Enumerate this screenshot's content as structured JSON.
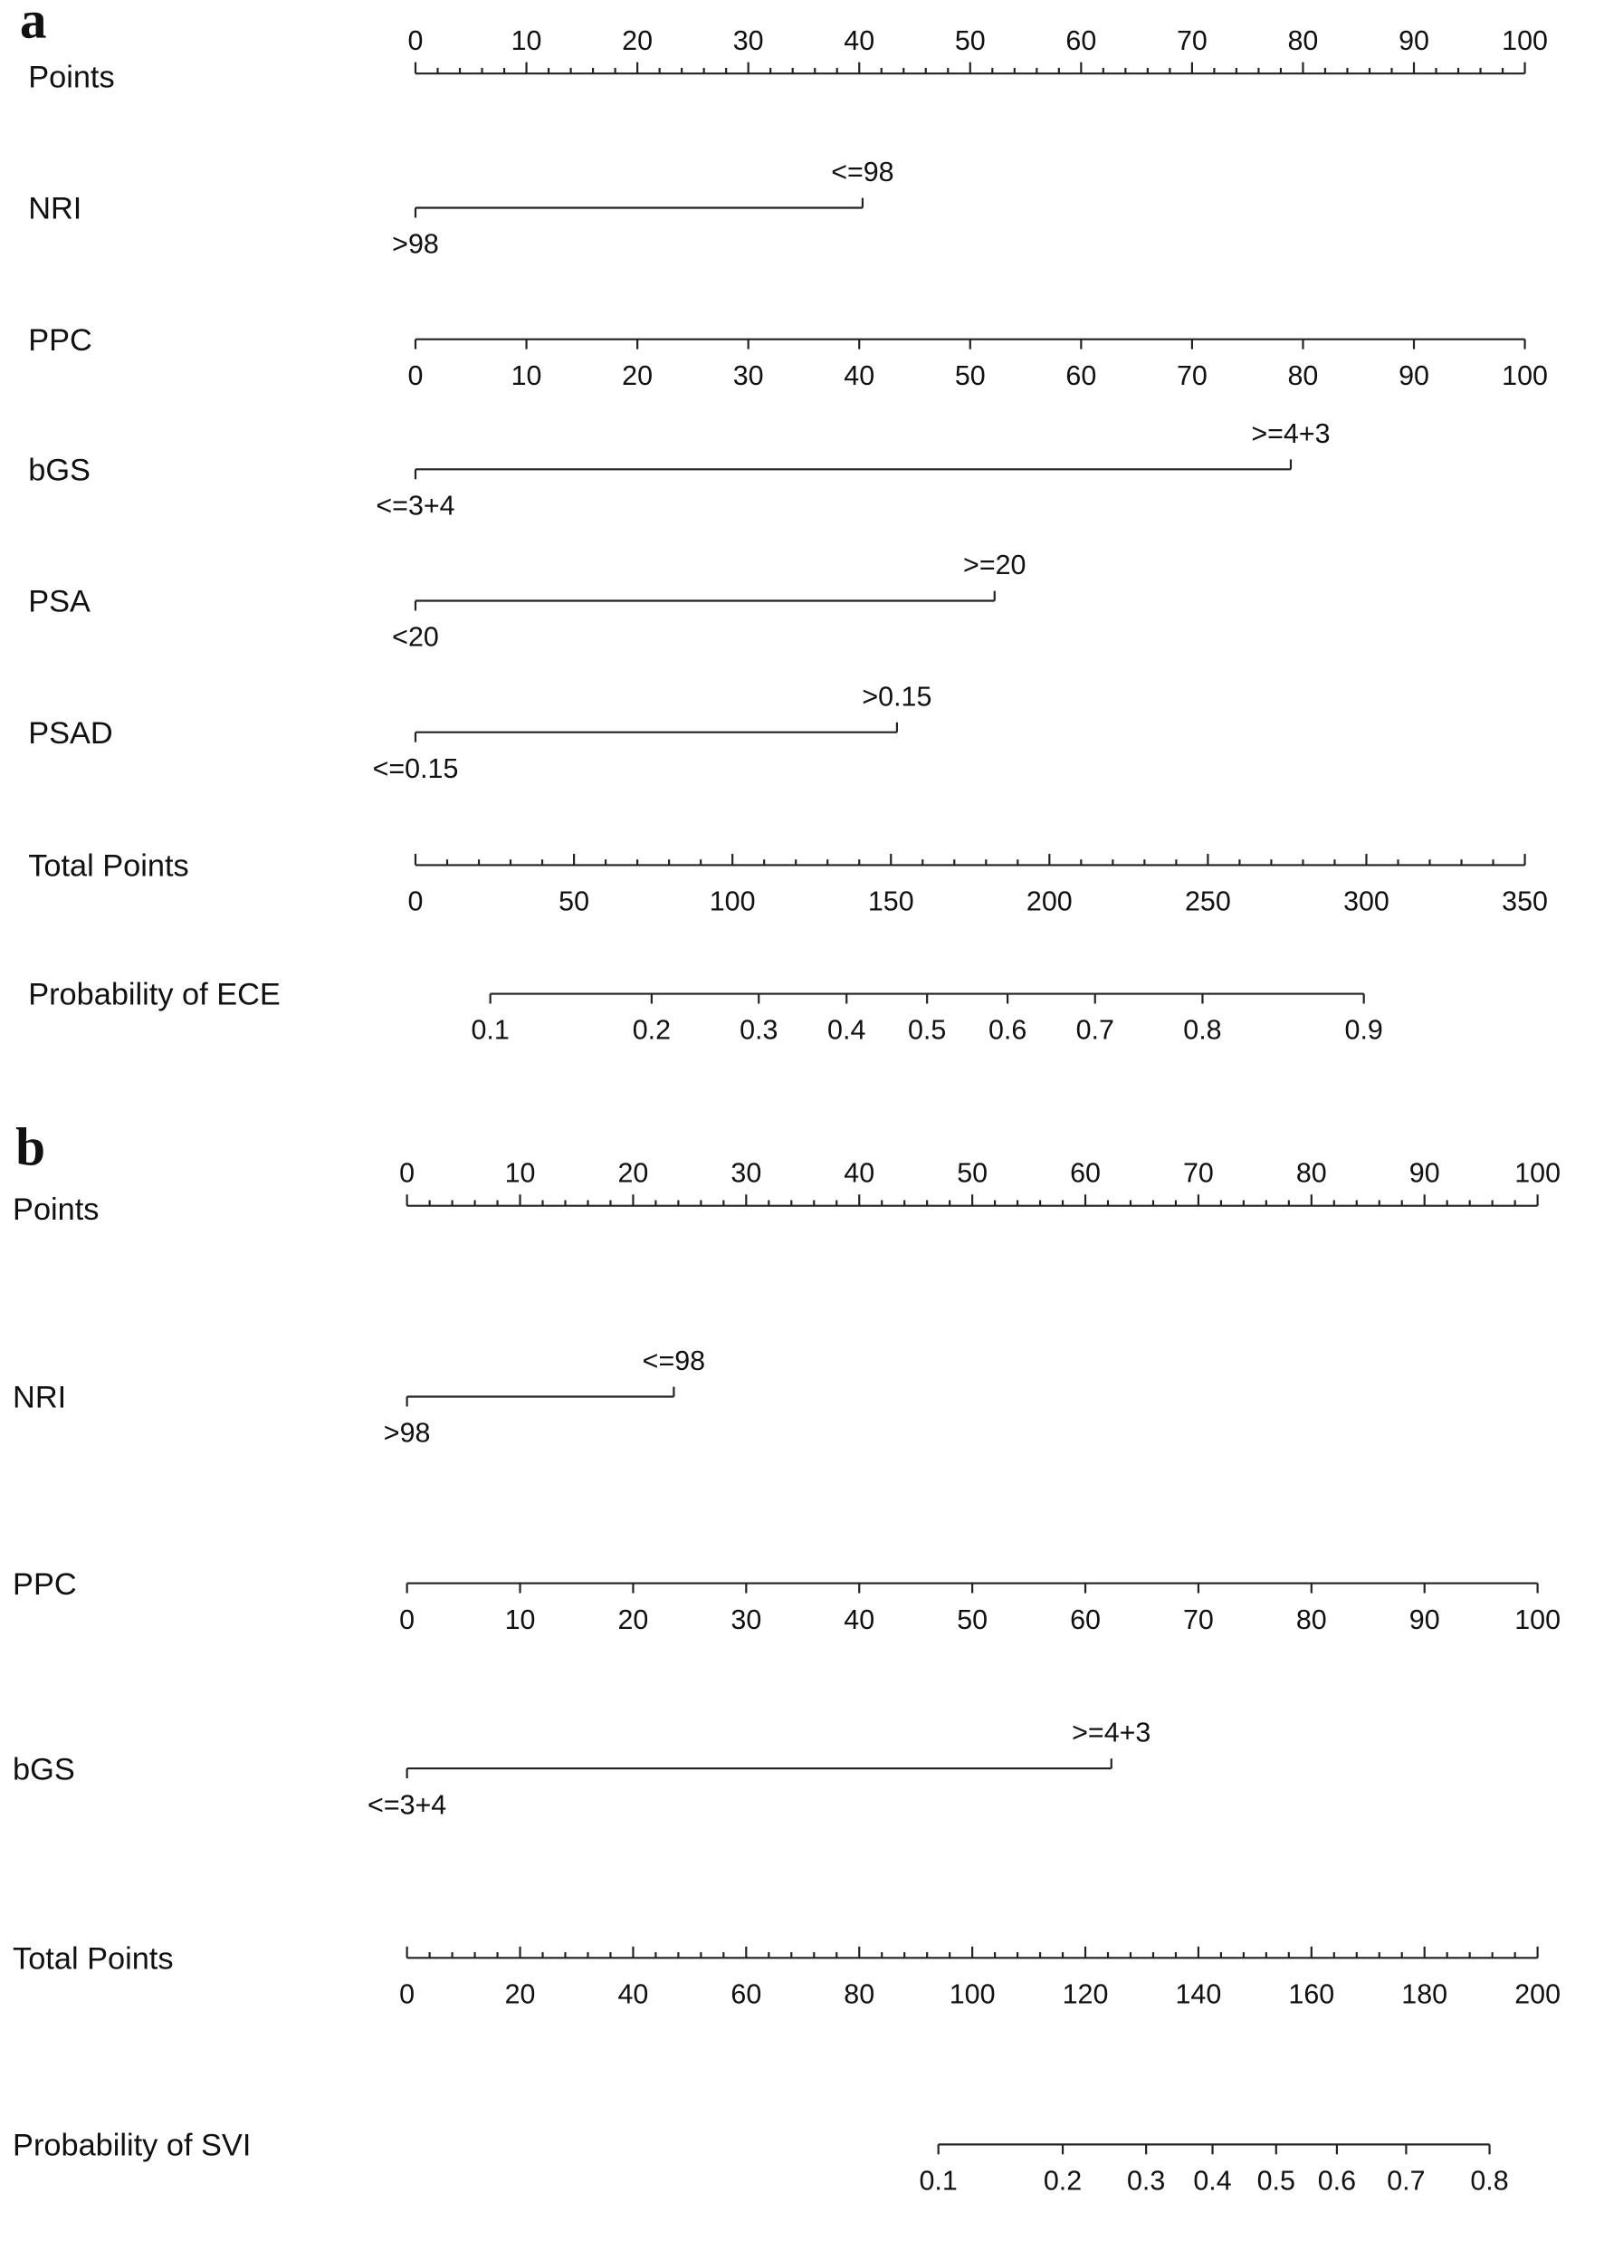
{
  "chart_data": [
    {
      "type": "nomogram",
      "panel": "a",
      "rows": [
        {
          "name": "Points",
          "kind": "points",
          "xlim": [
            0,
            100
          ],
          "xticks": [
            0,
            10,
            20,
            30,
            40,
            50,
            60,
            70,
            80,
            90,
            100
          ]
        },
        {
          "name": "NRI",
          "kind": "categorical",
          "levels": [
            ">98",
            "<=98"
          ],
          "points": [
            0,
            40.3
          ]
        },
        {
          "name": "PPC",
          "kind": "continuous",
          "xlim": [
            0,
            100
          ],
          "points": [
            0,
            100
          ],
          "xticks": [
            0,
            10,
            20,
            30,
            40,
            50,
            60,
            70,
            80,
            90,
            100
          ]
        },
        {
          "name": "bGS",
          "kind": "categorical",
          "levels": [
            "<=3+4",
            ">=4+3"
          ],
          "points": [
            0,
            78.9
          ]
        },
        {
          "name": "PSA",
          "kind": "categorical",
          "levels": [
            "<20",
            ">=20"
          ],
          "points": [
            0,
            52.2
          ]
        },
        {
          "name": "PSAD",
          "kind": "categorical",
          "levels": [
            "<=0.15",
            ">0.15"
          ],
          "points": [
            0,
            43.4
          ]
        },
        {
          "name": "Total Points",
          "kind": "total",
          "xlim": [
            0,
            350
          ],
          "xticks": [
            0,
            50,
            100,
            150,
            200,
            250,
            300,
            350
          ]
        },
        {
          "name": "Probability of ECE",
          "kind": "probability",
          "xticks": [
            0.1,
            0.2,
            0.3,
            0.4,
            0.5,
            0.6,
            0.7,
            0.8,
            0.9
          ],
          "total_points": [
            23.6,
            74.5,
            108.3,
            136,
            161.4,
            186.8,
            214.4,
            248.3,
            299.2
          ]
        }
      ]
    },
    {
      "type": "nomogram",
      "panel": "b",
      "rows": [
        {
          "name": "Points",
          "kind": "points",
          "xlim": [
            0,
            100
          ],
          "xticks": [
            0,
            10,
            20,
            30,
            40,
            50,
            60,
            70,
            80,
            90,
            100
          ]
        },
        {
          "name": "NRI",
          "kind": "categorical",
          "levels": [
            ">98",
            "<=98"
          ],
          "points": [
            0,
            23.6
          ]
        },
        {
          "name": "PPC",
          "kind": "continuous",
          "xlim": [
            0,
            100
          ],
          "points": [
            0,
            100
          ],
          "xticks": [
            0,
            10,
            20,
            30,
            40,
            50,
            60,
            70,
            80,
            90,
            100
          ]
        },
        {
          "name": "bGS",
          "kind": "categorical",
          "levels": [
            "<=3+4",
            ">=4+3"
          ],
          "points": [
            0,
            62.3
          ]
        },
        {
          "name": "Total Points",
          "kind": "total",
          "xlim": [
            0,
            200
          ],
          "xticks": [
            0,
            20,
            40,
            60,
            80,
            100,
            120,
            140,
            160,
            180,
            200
          ]
        },
        {
          "name": "Probability of SVI",
          "kind": "probability",
          "xticks": [
            0.1,
            0.2,
            0.3,
            0.4,
            0.5,
            0.6,
            0.7,
            0.8
          ],
          "total_points": [
            94,
            116,
            130.75,
            142.5,
            153.75,
            164.5,
            176.75,
            191.5
          ]
        }
      ]
    }
  ]
}
